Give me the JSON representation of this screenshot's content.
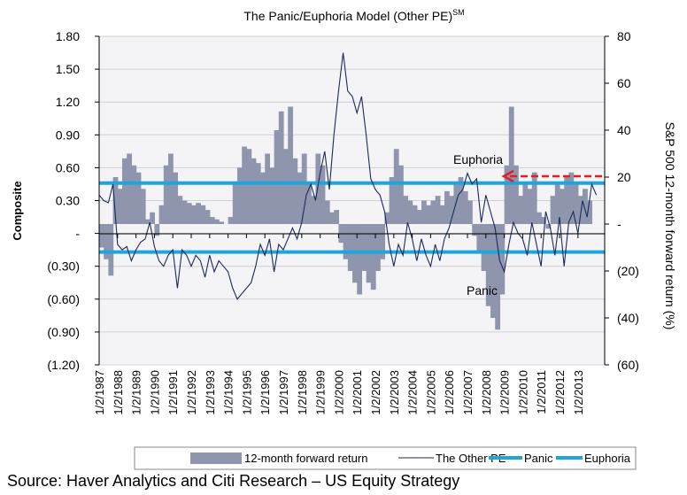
{
  "chart_data": {
    "type": "bar+line",
    "title": "The Panic/Euphoria Model (Other PE)",
    "title_superscript": "SM",
    "ylabel_left": "Composite",
    "ylabel_right": "S&P 500 12-month forward return (%)",
    "ylim_left": [
      -1.2,
      1.8
    ],
    "ylim_right": [
      -60,
      80
    ],
    "yticks_left": [
      "1.80",
      "1.50",
      "1.20",
      "0.90",
      "0.60",
      "0.30",
      "-",
      "(0.30)",
      "(0.60)",
      "(0.90)",
      "(1.20)"
    ],
    "yticks_right": [
      "80",
      "60",
      "40",
      "20",
      "-",
      "(20)",
      "(40)",
      "(60)"
    ],
    "xticks": [
      "1/2/1987",
      "1/2/1988",
      "1/2/1989",
      "1/2/1990",
      "1/2/1991",
      "1/2/1992",
      "1/2/1993",
      "1/2/1994",
      "1/2/1995",
      "1/2/1996",
      "1/2/1997",
      "1/2/1998",
      "1/2/1999",
      "1/2/2000",
      "1/2/2001",
      "1/2/2002",
      "1/2/2003",
      "1/2/2004",
      "1/2/2005",
      "1/2/2006",
      "1/2/2007",
      "1/2/2008",
      "1/2/2009",
      "1/2/2010",
      "1/2/2011",
      "1/2/2012",
      "1/2/2013"
    ],
    "grid": true,
    "legend_position": "bottom",
    "colors": {
      "bars": "#8e95ad",
      "line": "#1c2a5a",
      "thresholds": "#1ea6dc",
      "arrow": "#e02020",
      "grid": "#d0d0d8"
    },
    "thresholds": {
      "panic": -0.17,
      "euphoria": 0.46
    },
    "annotations": [
      {
        "label": "Euphoria"
      },
      {
        "label": "Panic"
      }
    ],
    "series": [
      {
        "name": "12-month forward return",
        "axis": "right",
        "kind": "bar",
        "x": [
          1987.0,
          1987.25,
          1987.5,
          1987.75,
          1988.0,
          1988.25,
          1988.5,
          1988.75,
          1989.0,
          1989.25,
          1989.5,
          1989.75,
          1990.0,
          1990.25,
          1990.5,
          1990.75,
          1991.0,
          1991.25,
          1991.5,
          1991.75,
          1992.0,
          1992.25,
          1992.5,
          1992.75,
          1993.0,
          1993.25,
          1993.5,
          1993.75,
          1994.0,
          1994.25,
          1994.5,
          1994.75,
          1995.0,
          1995.25,
          1995.5,
          1995.75,
          1996.0,
          1996.25,
          1996.5,
          1996.75,
          1997.0,
          1997.25,
          1997.5,
          1997.75,
          1998.0,
          1998.25,
          1998.5,
          1998.75,
          1999.0,
          1999.25,
          1999.5,
          1999.75,
          2000.0,
          2000.25,
          2000.5,
          2000.75,
          2001.0,
          2001.25,
          2001.5,
          2001.75,
          2002.0,
          2002.25,
          2002.5,
          2002.75,
          2003.0,
          2003.25,
          2003.5,
          2003.75,
          2004.0,
          2004.25,
          2004.5,
          2004.75,
          2005.0,
          2005.25,
          2005.5,
          2005.75,
          2006.0,
          2006.25,
          2006.5,
          2006.75,
          2007.0,
          2007.25,
          2007.5,
          2007.75,
          2008.0,
          2008.25,
          2008.5,
          2008.75,
          2009.0,
          2009.25,
          2009.5,
          2009.75,
          2010.0,
          2010.25,
          2010.5,
          2010.75,
          2011.0,
          2011.25,
          2011.5,
          2011.75,
          2012.0,
          2012.25,
          2012.5,
          2012.75,
          2013.0,
          2013.25,
          2013.5
        ],
        "values": [
          -10,
          -15,
          -22,
          20,
          15,
          28,
          30,
          25,
          22,
          15,
          2,
          5,
          -5,
          8,
          25,
          30,
          22,
          12,
          10,
          9,
          8,
          9,
          8,
          6,
          3,
          2,
          1,
          0,
          3,
          18,
          24,
          33,
          32,
          28,
          26,
          22,
          30,
          24,
          40,
          48,
          32,
          50,
          28,
          22,
          30,
          18,
          12,
          30,
          25,
          10,
          5,
          6,
          -8,
          -15,
          -20,
          -25,
          -30,
          -20,
          -25,
          -28,
          -20,
          -15,
          5,
          20,
          32,
          25,
          12,
          10,
          8,
          6,
          10,
          8,
          10,
          12,
          8,
          14,
          12,
          18,
          20,
          14,
          10,
          -5,
          -12,
          -20,
          -35,
          -40,
          -45,
          -30,
          25,
          50,
          25,
          12,
          18,
          15,
          22,
          5,
          3,
          -2,
          12,
          18,
          15,
          20,
          22,
          18,
          12,
          15,
          10
        ]
      },
      {
        "name": "The Other PE",
        "axis": "left",
        "kind": "line",
        "x": [
          1987.0,
          1987.25,
          1987.5,
          1987.75,
          1988.0,
          1988.25,
          1988.5,
          1988.75,
          1989.0,
          1989.25,
          1989.5,
          1989.75,
          1990.0,
          1990.25,
          1990.5,
          1990.75,
          1991.0,
          1991.25,
          1991.5,
          1991.75,
          1992.0,
          1992.25,
          1992.5,
          1992.75,
          1993.0,
          1993.25,
          1993.5,
          1993.75,
          1994.0,
          1994.25,
          1994.5,
          1994.75,
          1995.0,
          1995.25,
          1995.5,
          1995.75,
          1996.0,
          1996.25,
          1996.5,
          1996.75,
          1997.0,
          1997.25,
          1997.5,
          1997.75,
          1998.0,
          1998.25,
          1998.5,
          1998.75,
          1999.0,
          1999.25,
          1999.5,
          1999.75,
          2000.0,
          2000.25,
          2000.5,
          2000.75,
          2001.0,
          2001.25,
          2001.5,
          2001.75,
          2002.0,
          2002.25,
          2002.5,
          2002.75,
          2003.0,
          2003.25,
          2003.5,
          2003.75,
          2004.0,
          2004.25,
          2004.5,
          2004.75,
          2005.0,
          2005.25,
          2005.5,
          2005.75,
          2006.0,
          2006.25,
          2006.5,
          2006.75,
          2007.0,
          2007.25,
          2007.5,
          2007.75,
          2008.0,
          2008.25,
          2008.5,
          2008.75,
          2009.0,
          2009.25,
          2009.5,
          2009.75,
          2010.0,
          2010.25,
          2010.5,
          2010.75,
          2011.0,
          2011.25,
          2011.5,
          2011.75,
          2012.0,
          2012.25,
          2012.5,
          2012.75,
          2013.0,
          2013.25,
          2013.5,
          2013.75,
          2014.0
        ],
        "values": [
          0.35,
          0.3,
          0.28,
          0.45,
          -0.1,
          -0.15,
          -0.12,
          -0.25,
          -0.15,
          -0.08,
          -0.05,
          0.1,
          -0.12,
          -0.25,
          -0.3,
          -0.2,
          -0.15,
          -0.5,
          -0.15,
          -0.2,
          -0.3,
          -0.2,
          -0.25,
          -0.4,
          -0.2,
          -0.35,
          -0.25,
          -0.3,
          -0.35,
          -0.5,
          -0.6,
          -0.55,
          -0.5,
          -0.45,
          -0.3,
          -0.1,
          -0.2,
          -0.05,
          -0.35,
          -0.1,
          -0.15,
          -0.05,
          0.05,
          -0.05,
          0.1,
          0.35,
          0.45,
          0.3,
          0.55,
          0.75,
          0.4,
          0.9,
          1.3,
          1.65,
          1.3,
          1.25,
          1.1,
          1.25,
          0.9,
          0.5,
          0.4,
          0.35,
          0.2,
          -0.1,
          -0.3,
          -0.1,
          -0.2,
          0.1,
          -0.05,
          -0.25,
          -0.05,
          -0.2,
          -0.3,
          -0.1,
          -0.25,
          -0.05,
          0.05,
          0.2,
          0.35,
          0.4,
          0.55,
          0.45,
          0.5,
          0.1,
          0.35,
          0.2,
          0.05,
          -0.25,
          -0.35,
          -0.1,
          0.1,
          0.0,
          -0.05,
          -0.2,
          0.1,
          -0.1,
          -0.3,
          0.2,
          0.05,
          -0.2,
          0.15,
          -0.3,
          0.1,
          0.2,
          0.0,
          0.3,
          0.15,
          0.45,
          0.35
        ]
      },
      {
        "name": "Panic",
        "kind": "threshold"
      },
      {
        "name": "Euphoria",
        "kind": "threshold"
      }
    ]
  },
  "source": "Source: Haver Analytics and Citi Research – US Equity Strategy"
}
